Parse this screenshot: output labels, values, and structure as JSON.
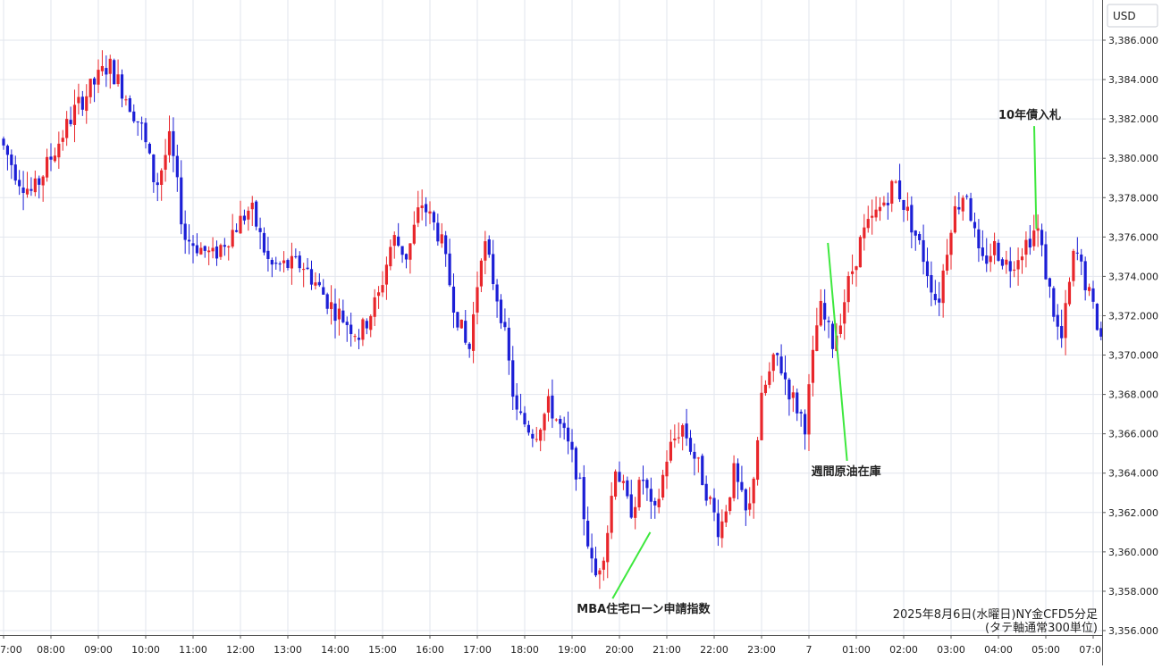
{
  "chart_data": {
    "type": "candlestick",
    "currency_label": "USD",
    "caption_line1": "2025年8月6日(水曜日)NY金CFD5分足",
    "caption_line2": "(タテ軸通常300単位)",
    "ylim": [
      3356,
      3387
    ],
    "y_ticks": [
      "3,386.000",
      "3,384.000",
      "3,382.000",
      "3,380.000",
      "3,378.000",
      "3,376.000",
      "3,374.000",
      "3,372.000",
      "3,370.000",
      "3,368.000",
      "3,366.000",
      "3,364.000",
      "3,362.000",
      "3,360.000",
      "3,358.000",
      "3,356.000"
    ],
    "x_ticks": [
      "7:00",
      "08:00",
      "09:00",
      "10:00",
      "11:00",
      "12:00",
      "13:00",
      "14:00",
      "15:00",
      "16:00",
      "17:00",
      "18:00",
      "19:00",
      "20:00",
      "21:00",
      "22:00",
      "23:00",
      "7",
      "01:00",
      "02:00",
      "03:00",
      "04:00",
      "05:00",
      "07:0"
    ],
    "colors": {
      "up": "#e8262b",
      "down": "#1c1fd6",
      "grid": "#e2e6ee",
      "axis": "#555555",
      "annotation_line": "#3ee83e"
    },
    "grid": true,
    "anchors": [
      {
        "h": 0.0,
        "p": 3381.0
      },
      {
        "h": 0.4,
        "p": 3379.0
      },
      {
        "h": 0.7,
        "p": 3378.2
      },
      {
        "h": 1.2,
        "p": 3380.6
      },
      {
        "h": 1.6,
        "p": 3382.5
      },
      {
        "h": 2.3,
        "p": 3384.8
      },
      {
        "h": 2.7,
        "p": 3383.0
      },
      {
        "h": 3.0,
        "p": 3381.5
      },
      {
        "h": 3.3,
        "p": 3378.5
      },
      {
        "h": 3.6,
        "p": 3381.0
      },
      {
        "h": 3.9,
        "p": 3376.0
      },
      {
        "h": 4.5,
        "p": 3375.0
      },
      {
        "h": 5.3,
        "p": 3377.5
      },
      {
        "h": 5.7,
        "p": 3374.5
      },
      {
        "h": 6.4,
        "p": 3374.6
      },
      {
        "h": 7.0,
        "p": 3372.5
      },
      {
        "h": 7.6,
        "p": 3371.0
      },
      {
        "h": 8.0,
        "p": 3373.0
      },
      {
        "h": 8.3,
        "p": 3376.0
      },
      {
        "h": 8.6,
        "p": 3375.0
      },
      {
        "h": 8.9,
        "p": 3377.8
      },
      {
        "h": 9.3,
        "p": 3376.0
      },
      {
        "h": 9.6,
        "p": 3372.5
      },
      {
        "h": 9.9,
        "p": 3370.0
      },
      {
        "h": 10.2,
        "p": 3376.0
      },
      {
        "h": 10.6,
        "p": 3372.0
      },
      {
        "h": 10.9,
        "p": 3367.0
      },
      {
        "h": 11.3,
        "p": 3366.0
      },
      {
        "h": 11.6,
        "p": 3367.5
      },
      {
        "h": 11.9,
        "p": 3366.0
      },
      {
        "h": 12.2,
        "p": 3364.0
      },
      {
        "h": 12.55,
        "p": 3358.5
      },
      {
        "h": 12.8,
        "p": 3360.5
      },
      {
        "h": 13.0,
        "p": 3364.5
      },
      {
        "h": 13.3,
        "p": 3362.0
      },
      {
        "h": 13.6,
        "p": 3363.8
      },
      {
        "h": 13.8,
        "p": 3361.5
      },
      {
        "h": 14.1,
        "p": 3365.0
      },
      {
        "h": 14.4,
        "p": 3366.5
      },
      {
        "h": 14.8,
        "p": 3364.0
      },
      {
        "h": 15.2,
        "p": 3361.0
      },
      {
        "h": 15.5,
        "p": 3364.0
      },
      {
        "h": 15.8,
        "p": 3361.5
      },
      {
        "h": 16.1,
        "p": 3368.0
      },
      {
        "h": 16.4,
        "p": 3370.0
      },
      {
        "h": 16.7,
        "p": 3368.0
      },
      {
        "h": 17.0,
        "p": 3366.5
      },
      {
        "h": 17.3,
        "p": 3372.5
      },
      {
        "h": 17.6,
        "p": 3370.5
      },
      {
        "h": 17.9,
        "p": 3373.5
      },
      {
        "h": 18.2,
        "p": 3376.0
      },
      {
        "h": 18.6,
        "p": 3377.5
      },
      {
        "h": 18.9,
        "p": 3378.8
      },
      {
        "h": 19.2,
        "p": 3377.0
      },
      {
        "h": 19.5,
        "p": 3375.0
      },
      {
        "h": 19.8,
        "p": 3372.5
      },
      {
        "h": 20.1,
        "p": 3377.0
      },
      {
        "h": 20.4,
        "p": 3378.5
      },
      {
        "h": 20.7,
        "p": 3374.5
      },
      {
        "h": 21.0,
        "p": 3375.5
      },
      {
        "h": 21.3,
        "p": 3374.5
      },
      {
        "h": 21.6,
        "p": 3375.5
      },
      {
        "h": 21.9,
        "p": 3376.5
      },
      {
        "h": 22.1,
        "p": 3374.0
      },
      {
        "h": 22.4,
        "p": 3370.5
      },
      {
        "h": 22.7,
        "p": 3375.5
      },
      {
        "h": 23.0,
        "p": 3373.0
      },
      {
        "h": 23.3,
        "p": 3370.5
      },
      {
        "h": 23.6,
        "p": 3369.5
      },
      {
        "h": 23.9,
        "p": 3371.5
      },
      {
        "h": 24.2,
        "p": 3373.5
      },
      {
        "h": 24.5,
        "p": 3370.8
      },
      {
        "h": 24.8,
        "p": 3371.8
      },
      {
        "h": 25.1,
        "p": 3371.5
      },
      {
        "h": 25.4,
        "p": 3370.5
      },
      {
        "h": 25.7,
        "p": 3369.5
      },
      {
        "h": 26.0,
        "p": 3368.5
      },
      {
        "h": 26.3,
        "p": 3367.8
      },
      {
        "h": 26.6,
        "p": 3368.3
      },
      {
        "h": 26.8,
        "p": 3373.0
      }
    ],
    "annotations": [
      {
        "label": "MBA住宅ローン申請指数",
        "time_h": 13.65,
        "price": 3361.0,
        "label_time_h": 12.1,
        "label_price": 3356.9
      },
      {
        "label": "週間原油在庫",
        "time_h": 17.4,
        "price": 3375.7,
        "label_time_h": 17.05,
        "label_price": 3363.9
      },
      {
        "label": "10年債入札",
        "time_h": 21.8,
        "price": 3376.4,
        "label_time_h": 21.0,
        "label_price": 3382.0
      }
    ]
  }
}
